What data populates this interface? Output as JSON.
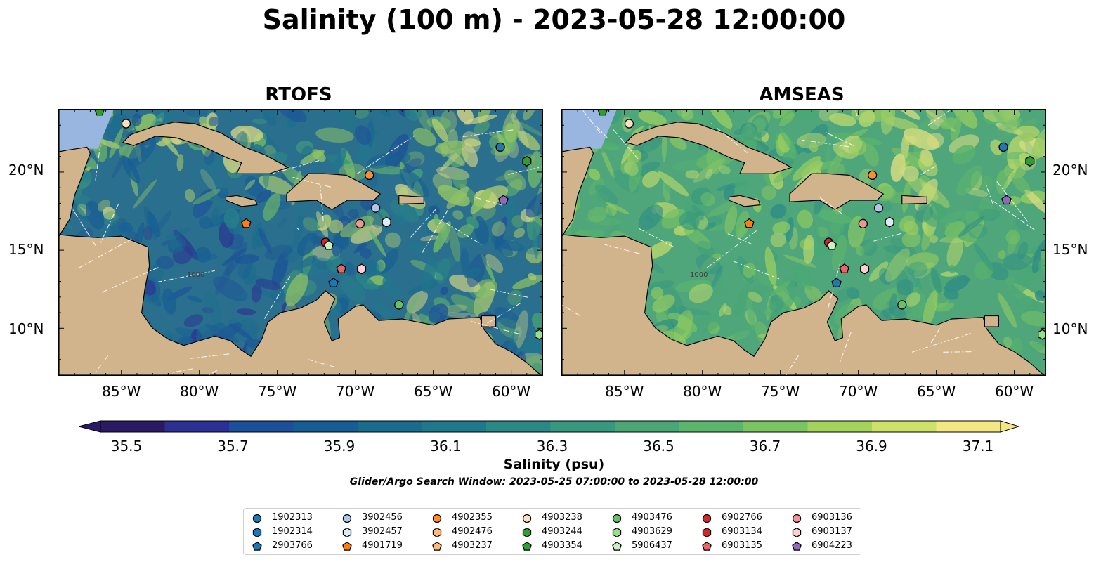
{
  "title": "Salinity (100 m) - 2023-05-28 12:00:00",
  "chart_data": [
    {
      "type": "heatmap",
      "title": "RTOFS",
      "xlabel": "",
      "ylabel": "",
      "xlim": [
        -89,
        -58
      ],
      "ylim": [
        7,
        24
      ],
      "x_ticks": [
        "85°W",
        "80°W",
        "75°W",
        "70°W",
        "65°W",
        "60°W"
      ],
      "y_ticks": [
        "20°N",
        "15°N",
        "10°N"
      ],
      "grid": false,
      "contour_labels": [
        "1000"
      ],
      "floats": [
        {
          "id": "1902313",
          "lon": -60.7,
          "lat": 21.6
        },
        {
          "id": "4903244",
          "lon": -59.0,
          "lat": 20.7
        },
        {
          "id": "4902355",
          "lon": -69.1,
          "lat": 19.8
        },
        {
          "id": "6904223",
          "lon": -60.5,
          "lat": 18.2
        },
        {
          "id": "3902456",
          "lon": -68.7,
          "lat": 17.7
        },
        {
          "id": "3902457",
          "lon": -68.0,
          "lat": 16.8
        },
        {
          "id": "6903136",
          "lon": -69.7,
          "lat": 16.7
        },
        {
          "id": "4901719",
          "lon": -77.0,
          "lat": 16.7
        },
        {
          "id": "6902766",
          "lon": -71.9,
          "lat": 15.5
        },
        {
          "id": "5906437",
          "lon": -71.7,
          "lat": 15.3
        },
        {
          "id": "6903135",
          "lon": -70.9,
          "lat": 13.8
        },
        {
          "id": "6903137",
          "lon": -69.6,
          "lat": 13.8
        },
        {
          "id": "2903766",
          "lon": -71.4,
          "lat": 12.9
        },
        {
          "id": "4903476",
          "lon": -67.2,
          "lat": 11.5
        },
        {
          "id": "4903354",
          "lon": -86.4,
          "lat": 23.9
        },
        {
          "id": "4903238",
          "lon": -84.7,
          "lat": 23.1
        },
        {
          "id": "4903629",
          "lon": -58.2,
          "lat": 9.6
        }
      ]
    },
    {
      "type": "heatmap",
      "title": "AMSEAS",
      "xlabel": "",
      "ylabel": "",
      "xlim": [
        -89,
        -58
      ],
      "ylim": [
        7,
        24
      ],
      "x_ticks": [
        "85°W",
        "80°W",
        "75°W",
        "70°W",
        "65°W",
        "60°W"
      ],
      "y_ticks": [
        "20°N",
        "15°N",
        "10°N"
      ],
      "grid": false,
      "contour_labels": [
        "1000"
      ],
      "floats": [
        {
          "id": "1902313",
          "lon": -60.7,
          "lat": 21.6
        },
        {
          "id": "4903244",
          "lon": -59.0,
          "lat": 20.7
        },
        {
          "id": "4902355",
          "lon": -69.1,
          "lat": 19.8
        },
        {
          "id": "6904223",
          "lon": -60.5,
          "lat": 18.2
        },
        {
          "id": "3902456",
          "lon": -68.7,
          "lat": 17.7
        },
        {
          "id": "3902457",
          "lon": -68.0,
          "lat": 16.8
        },
        {
          "id": "6903136",
          "lon": -69.7,
          "lat": 16.7
        },
        {
          "id": "4901719",
          "lon": -77.0,
          "lat": 16.7
        },
        {
          "id": "6902766",
          "lon": -71.9,
          "lat": 15.5
        },
        {
          "id": "5906437",
          "lon": -71.7,
          "lat": 15.3
        },
        {
          "id": "6903135",
          "lon": -70.9,
          "lat": 13.8
        },
        {
          "id": "6903137",
          "lon": -69.6,
          "lat": 13.8
        },
        {
          "id": "2903766",
          "lon": -71.4,
          "lat": 12.9
        },
        {
          "id": "4903476",
          "lon": -67.2,
          "lat": 11.5
        },
        {
          "id": "4903354",
          "lon": -86.4,
          "lat": 23.9
        },
        {
          "id": "4903238",
          "lon": -84.7,
          "lat": 23.1
        },
        {
          "id": "4903629",
          "lon": -58.2,
          "lat": 9.6
        }
      ]
    }
  ],
  "colorbar": {
    "label": "Salinity (psu)",
    "ticks": [
      "35.5",
      "35.7",
      "35.9",
      "36.1",
      "36.3",
      "36.5",
      "36.7",
      "36.9",
      "37.1"
    ],
    "min": 35.5,
    "max": 37.1,
    "extend": "both",
    "colors": [
      "#2a1a63",
      "#2c2f93",
      "#1c4f99",
      "#175d95",
      "#1a6c8f",
      "#20788c",
      "#2a8987",
      "#38987f",
      "#4aa775",
      "#5cb56c",
      "#7bc462",
      "#a3d35d",
      "#cde06a",
      "#f3e783"
    ]
  },
  "search_window": "Glider/Argo Search Window: 2023-05-25 07:00:00 to 2023-05-28 12:00:00",
  "legend": [
    {
      "id": "1902313",
      "color": "#1f77b4",
      "marker": "circle"
    },
    {
      "id": "1902314",
      "color": "#1f77b4",
      "marker": "hexagon"
    },
    {
      "id": "2903766",
      "color": "#1f77b4",
      "marker": "pentagon"
    },
    {
      "id": "3902456",
      "color": "#aec7e8",
      "marker": "circle"
    },
    {
      "id": "3902457",
      "color": "#dcebf7",
      "marker": "hexagon"
    },
    {
      "id": "4901719",
      "color": "#ff7f0e",
      "marker": "pentagon"
    },
    {
      "id": "4902355",
      "color": "#ff8c2e",
      "marker": "circle"
    },
    {
      "id": "4902476",
      "color": "#ffbb78",
      "marker": "hexagon"
    },
    {
      "id": "4903237",
      "color": "#ffbb78",
      "marker": "pentagon"
    },
    {
      "id": "4903238",
      "color": "#fde0c0",
      "marker": "circle"
    },
    {
      "id": "4903244",
      "color": "#2ca02c",
      "marker": "hexagon"
    },
    {
      "id": "4903354",
      "color": "#2ca02c",
      "marker": "pentagon"
    },
    {
      "id": "4903476",
      "color": "#66c266",
      "marker": "circle"
    },
    {
      "id": "4903629",
      "color": "#98df8a",
      "marker": "hexagon"
    },
    {
      "id": "5906437",
      "color": "#c9f0c0",
      "marker": "pentagon"
    },
    {
      "id": "6902766",
      "color": "#d62728",
      "marker": "circle"
    },
    {
      "id": "6903134",
      "color": "#d62728",
      "marker": "hexagon"
    },
    {
      "id": "6903135",
      "color": "#e8666a",
      "marker": "pentagon"
    },
    {
      "id": "6903136",
      "color": "#f09496",
      "marker": "circle"
    },
    {
      "id": "6903137",
      "color": "#ffd0d0",
      "marker": "hexagon"
    },
    {
      "id": "6904223",
      "color": "#9467bd",
      "marker": "pentagon"
    }
  ],
  "colors": {
    "land": "#d2b48c",
    "deep_land_ocean": "#98b6df"
  }
}
